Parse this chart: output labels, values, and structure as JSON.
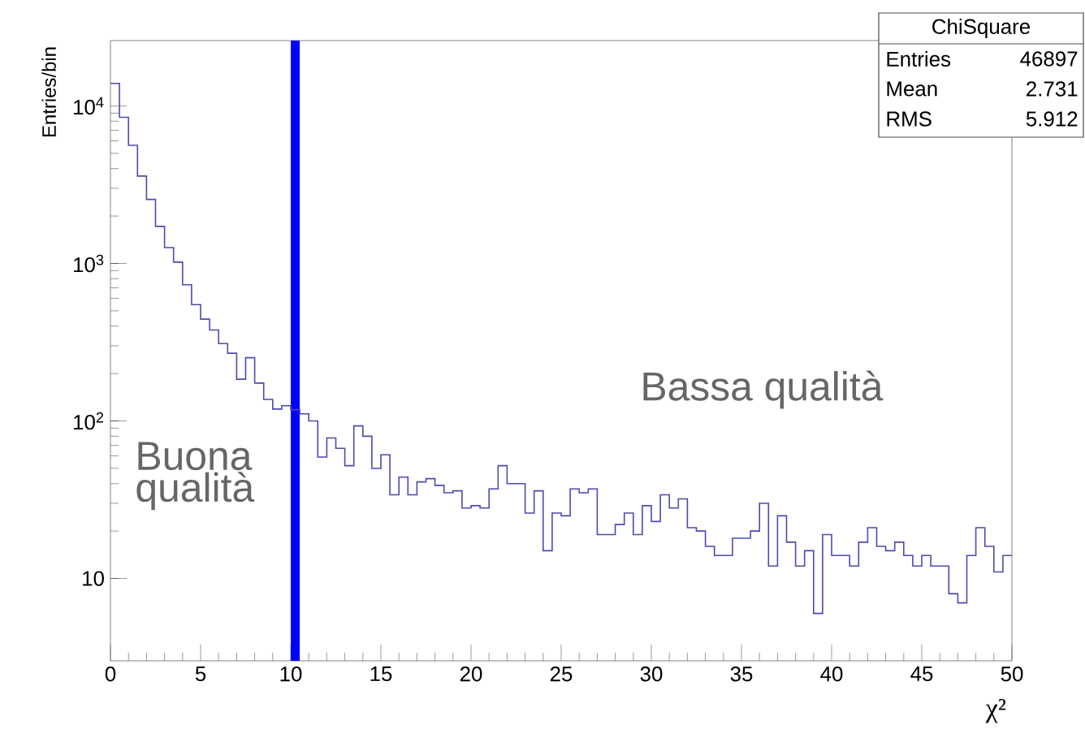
{
  "chart_data": {
    "type": "histogram",
    "xlabel": "χ²",
    "ylabel": "Entries/bin",
    "bins": [
      0,
      0.5,
      1,
      1.5,
      2,
      2.5,
      3,
      3.5,
      4,
      4.5,
      5,
      5.5,
      6,
      6.5,
      7,
      7.5,
      8,
      8.5,
      9,
      9.5,
      10,
      10.5,
      11,
      11.5,
      12,
      12.5,
      13,
      13.5,
      14,
      14.5,
      15,
      15.5,
      16,
      16.5,
      17,
      17.5,
      18,
      18.5,
      19,
      19.5,
      20,
      20.5,
      21,
      21.5,
      22,
      22.5,
      23,
      23.5,
      24,
      24.5,
      25,
      25.5,
      26,
      26.5,
      27,
      27.5,
      28,
      28.5,
      29,
      29.5,
      30,
      30.5,
      31,
      31.5,
      32,
      32.5,
      33,
      33.5,
      34,
      34.5,
      35,
      35.5,
      36,
      36.5,
      37,
      37.5,
      38,
      38.5,
      39,
      39.5,
      40,
      40.5,
      41,
      41.5,
      42,
      42.5,
      43,
      43.5,
      44,
      44.5,
      45,
      45.5,
      46,
      46.5,
      47,
      47.5,
      48,
      48.5,
      49,
      49.5,
      50
    ],
    "values": [
      13900,
      8470,
      5620,
      3590,
      2550,
      1720,
      1260,
      1020,
      733,
      548,
      443,
      378,
      310,
      269,
      184,
      252,
      174,
      137,
      119,
      125,
      118,
      111,
      100,
      59,
      78,
      67,
      52,
      93,
      80,
      50,
      61,
      34,
      44,
      34,
      41,
      43,
      39,
      35,
      36,
      28,
      29,
      28,
      37,
      52,
      40,
      40,
      26,
      36,
      15,
      26,
      25,
      37,
      35,
      37,
      19,
      19,
      22,
      26,
      19,
      29,
      23,
      34,
      28,
      32,
      21,
      20,
      16,
      14,
      14,
      18,
      18,
      20,
      30,
      12,
      25,
      17,
      12,
      15,
      6,
      19,
      14,
      14,
      12,
      17,
      21,
      16,
      15,
      17,
      14,
      12,
      14,
      12,
      12,
      8,
      7,
      14,
      21,
      16,
      11,
      14
    ],
    "color": "#4b4bb0",
    "xlim": [
      0,
      50
    ],
    "ylim": [
      3,
      26000
    ],
    "log": "y",
    "xticks": [
      0,
      5,
      10,
      15,
      20,
      25,
      30,
      35,
      40,
      45,
      50
    ],
    "yticks": [
      {
        "value": 10,
        "label": "10"
      },
      {
        "value": 100,
        "label": "10$^{2}$"
      },
      {
        "value": 1000,
        "label": "10$^{3}$"
      },
      {
        "value": 10000,
        "label": "10$^{4}$"
      }
    ],
    "bands": [
      {
        "axis": "x",
        "from": 10,
        "to": 10.5,
        "color": "#0000ff"
      }
    ],
    "annotations": [
      "Buona qualità",
      "Bassa qualità",
      "ChiSquare",
      "Entries",
      "46897",
      "Mean",
      "2.731",
      "RMS",
      "5.912"
    ]
  }
}
